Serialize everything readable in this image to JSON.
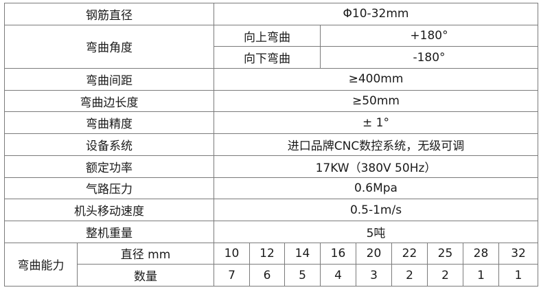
{
  "rows": {
    "diameter": {
      "label": "钢筋直径",
      "value": "Φ10-32mm"
    },
    "angle": {
      "label": "弯曲角度",
      "up_label": "向上弯曲",
      "up_value": "+180°",
      "down_label": "向下弯曲",
      "down_value": "-180°"
    },
    "spacing": {
      "label": "弯曲间距",
      "value": "≥400mm"
    },
    "edge": {
      "label": "弯曲边长度",
      "value": "≥50mm"
    },
    "precision": {
      "label": "弯曲精度",
      "value": "± 1°"
    },
    "system": {
      "label": "设备系统",
      "value": "进口品牌CNC数控系统，无级可调"
    },
    "power": {
      "label": "额定功率",
      "value": "17KW（380V 50Hz）"
    },
    "air": {
      "label": "气路压力",
      "value": "0.6Mpa"
    },
    "speed": {
      "label": "机头移动速度",
      "value": "0.5-1m/s"
    },
    "weight": {
      "label": "整机重量",
      "value": "5吨"
    }
  },
  "capacity": {
    "label": "弯曲能力",
    "diameter_label": "直径 mm",
    "count_label": "数量",
    "diameters": [
      "10",
      "12",
      "14",
      "16",
      "20",
      "22",
      "25",
      "28",
      "32"
    ],
    "counts": [
      "7",
      "6",
      "5",
      "4",
      "3",
      "2",
      "2",
      "1",
      "1"
    ]
  }
}
